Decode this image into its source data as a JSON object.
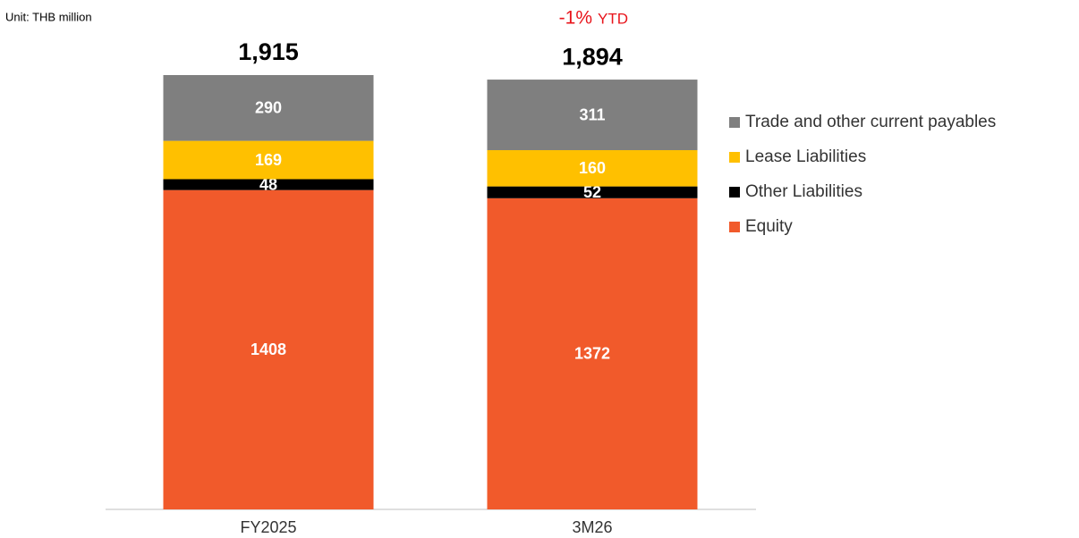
{
  "chart_data": {
    "type": "stacked_bar",
    "subtitle": "Unit: THB million",
    "annotation": [
      "-1%",
      "YTD"
    ],
    "categories": [
      "FY2025",
      "3M26"
    ],
    "series": [
      {
        "name": "Trade and other current payables",
        "color": "#7f7f7f",
        "values": [
          290,
          311
        ]
      },
      {
        "name": "Lease Liabilities",
        "color": "#ffc000",
        "values": [
          169,
          160
        ]
      },
      {
        "name": "Other Liabilities",
        "color": "#000000",
        "values": [
          48,
          52
        ]
      },
      {
        "name": "Equity",
        "color": "#f15a2b",
        "values": [
          1408,
          1372
        ]
      }
    ],
    "totals": {
      "values": [
        1915,
        1894
      ],
      "value_labels": [
        "1,915",
        "1,894"
      ]
    },
    "legend": "right"
  }
}
